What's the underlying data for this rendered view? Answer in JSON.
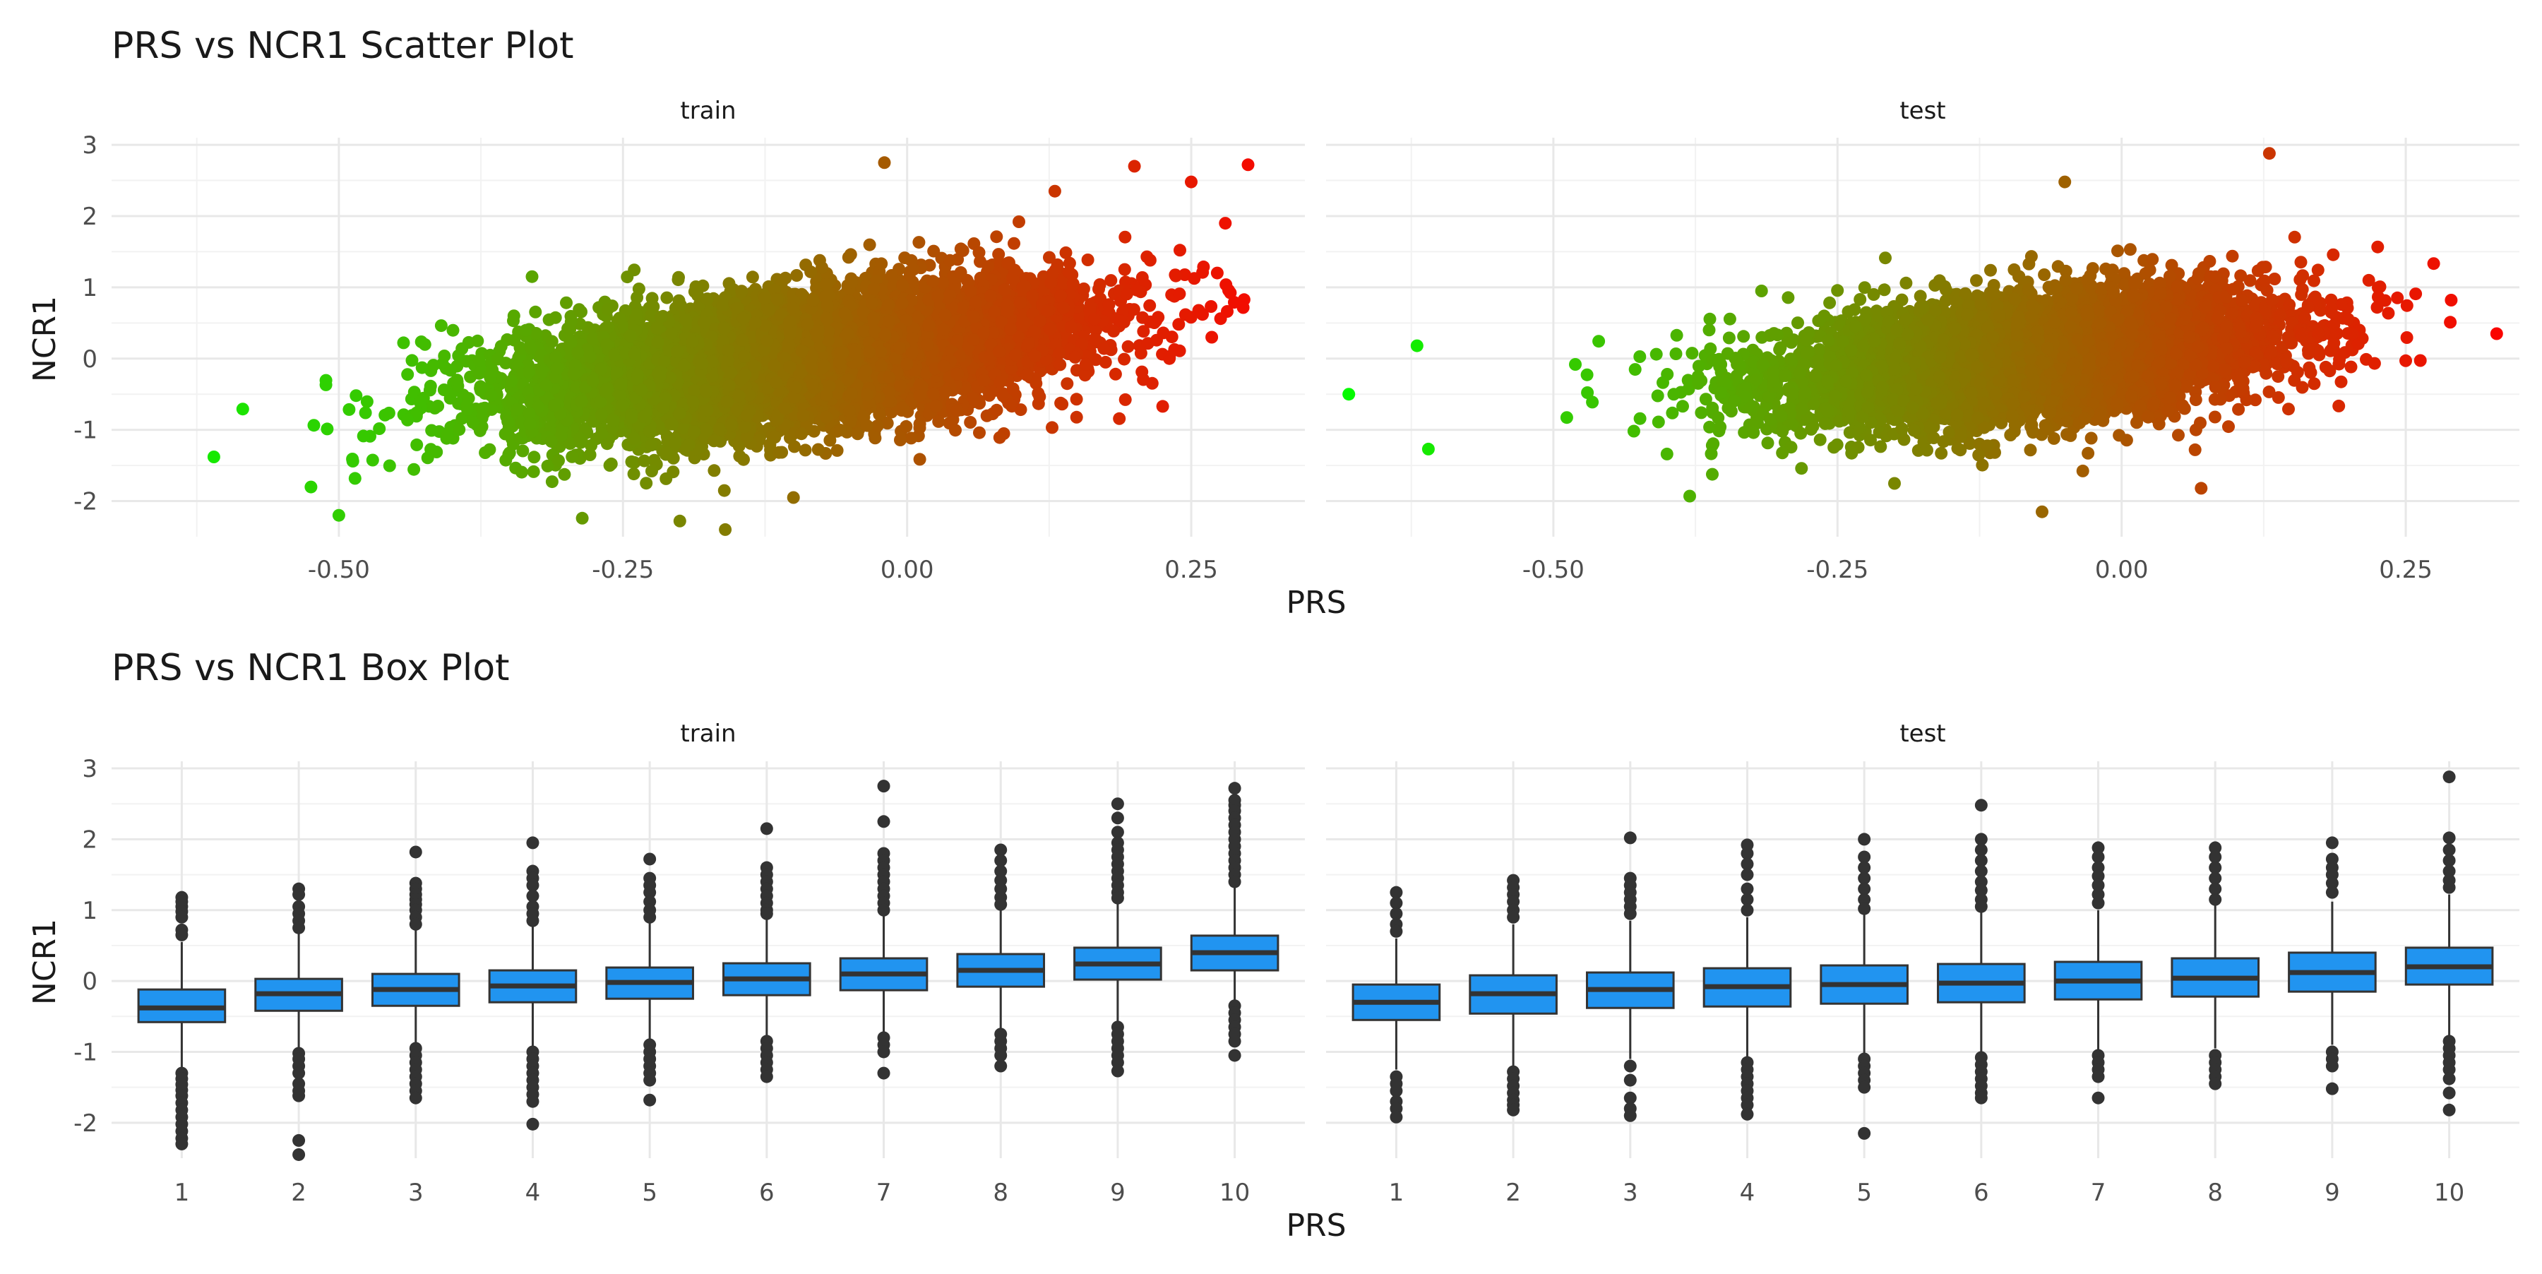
{
  "chart_data": [
    {
      "type": "scatter",
      "title": "PRS vs NCR1 Scatter Plot",
      "xlabel": "PRS",
      "ylabel": "NCR1",
      "facets": [
        "train",
        "test"
      ],
      "xlim": [
        -0.7,
        0.35
      ],
      "ylim": [
        -2.5,
        3.1
      ],
      "x_ticks": [
        -0.5,
        -0.25,
        0.0,
        0.25
      ],
      "x_tick_labels": [
        "-0.50",
        "-0.25",
        "0.00",
        "0.25"
      ],
      "y_ticks": [
        -2,
        -1,
        0,
        1,
        2,
        3
      ],
      "y_tick_labels": [
        "-2",
        "-1",
        "0",
        "1",
        "2",
        "3"
      ],
      "color_gradient": {
        "low": "#00ff00",
        "high": "#ff0000",
        "mapped_to": "PRS"
      },
      "grid": true,
      "legend": "none",
      "panels": [
        {
          "facet": "train",
          "n_points_approx": 8000,
          "prs_mean": -0.1,
          "prs_sd": 0.12,
          "slope": 1.9,
          "intercept": 0.19,
          "residual_sd": 0.45,
          "x_range": [
            -0.61,
            0.3
          ],
          "outliers": [
            {
              "x": 0.3,
              "y": 2.72
            },
            {
              "x": -0.61,
              "y": -1.38
            },
            {
              "x": -0.16,
              "y": -2.4
            },
            {
              "x": -0.02,
              "y": 2.75
            },
            {
              "x": 0.2,
              "y": 2.7
            },
            {
              "x": 0.25,
              "y": 2.48
            },
            {
              "x": -0.33,
              "y": 1.15
            },
            {
              "x": -0.5,
              "y": -2.2
            },
            {
              "x": -0.2,
              "y": -2.28
            },
            {
              "x": -0.1,
              "y": -1.95
            },
            {
              "x": 0.28,
              "y": 1.9
            },
            {
              "x": 0.13,
              "y": 2.35
            }
          ]
        },
        {
          "facet": "test",
          "n_points_approx": 6000,
          "prs_mean": -0.08,
          "prs_sd": 0.11,
          "slope": 1.7,
          "intercept": 0.15,
          "residual_sd": 0.42,
          "x_range": [
            -0.68,
            0.33
          ],
          "outliers": [
            {
              "x": -0.68,
              "y": -0.5
            },
            {
              "x": -0.61,
              "y": -1.27
            },
            {
              "x": 0.33,
              "y": 0.35
            },
            {
              "x": 0.13,
              "y": 2.88
            },
            {
              "x": 0.29,
              "y": 0.82
            },
            {
              "x": -0.05,
              "y": 2.48
            },
            {
              "x": -0.07,
              "y": -2.15
            },
            {
              "x": 0.07,
              "y": -1.82
            },
            {
              "x": -0.38,
              "y": -1.93
            },
            {
              "x": -0.62,
              "y": 0.18
            },
            {
              "x": 0.25,
              "y": -0.03
            }
          ]
        }
      ]
    },
    {
      "type": "box",
      "title": "PRS vs NCR1 Box Plot",
      "xlabel": "PRS",
      "ylabel": "NCR1",
      "facets": [
        "train",
        "test"
      ],
      "categories": [
        "1",
        "2",
        "3",
        "4",
        "5",
        "6",
        "7",
        "8",
        "9",
        "10"
      ],
      "ylim": [
        -2.5,
        3.1
      ],
      "y_ticks": [
        -2,
        -1,
        0,
        1,
        2,
        3
      ],
      "y_tick_labels": [
        "-2",
        "-1",
        "0",
        "1",
        "2",
        "3"
      ],
      "box_color": "#2194f0",
      "grid": true,
      "panels": [
        {
          "facet": "train",
          "boxes": [
            {
              "q1": -0.58,
              "median": -0.38,
              "q3": -0.12,
              "lower_whisker": -1.25,
              "upper_whisker": 0.55,
              "outliers": [
                1.18,
                1.12,
                1.05,
                0.98,
                0.9,
                0.72,
                0.65,
                -1.3,
                -1.38,
                -1.46,
                -1.54,
                -1.62,
                -1.72,
                -1.82,
                -1.92,
                -2.02,
                -2.12,
                -2.22,
                -2.3
              ]
            },
            {
              "q1": -0.42,
              "median": -0.18,
              "q3": 0.03,
              "lower_whisker": -0.97,
              "upper_whisker": 0.68,
              "outliers": [
                1.3,
                1.22,
                1.05,
                0.95,
                0.85,
                0.75,
                -1.02,
                -1.1,
                -1.2,
                -1.3,
                -1.45,
                -1.55,
                -1.62,
                -2.25,
                -2.45
              ]
            },
            {
              "q1": -0.35,
              "median": -0.12,
              "q3": 0.1,
              "lower_whisker": -0.98,
              "upper_whisker": 0.72,
              "outliers": [
                1.82,
                1.38,
                1.3,
                1.22,
                1.15,
                1.08,
                1.0,
                0.9,
                0.8,
                -0.95,
                -1.05,
                -1.15,
                -1.25,
                -1.35,
                -1.45,
                -1.55,
                -1.65
              ]
            },
            {
              "q1": -0.3,
              "median": -0.07,
              "q3": 0.15,
              "lower_whisker": -0.95,
              "upper_whisker": 0.77,
              "outliers": [
                1.95,
                1.55,
                1.45,
                1.35,
                1.2,
                1.05,
                0.95,
                0.85,
                -1.0,
                -1.1,
                -1.2,
                -1.3,
                -1.4,
                -1.5,
                -1.6,
                -1.7,
                -2.02
              ]
            },
            {
              "q1": -0.25,
              "median": -0.02,
              "q3": 0.19,
              "lower_whisker": -0.88,
              "upper_whisker": 0.82,
              "outliers": [
                1.72,
                1.45,
                1.35,
                1.25,
                1.12,
                1.0,
                0.9,
                -0.9,
                -1.0,
                -1.1,
                -1.2,
                -1.3,
                -1.4,
                -1.68
              ]
            },
            {
              "q1": -0.2,
              "median": 0.03,
              "q3": 0.25,
              "lower_whisker": -0.82,
              "upper_whisker": 0.88,
              "outliers": [
                2.15,
                1.6,
                1.5,
                1.4,
                1.3,
                1.2,
                1.1,
                1.0,
                0.95,
                -0.85,
                -0.95,
                -1.05,
                -1.15,
                -1.25,
                -1.35
              ]
            },
            {
              "q1": -0.13,
              "median": 0.1,
              "q3": 0.32,
              "lower_whisker": -0.75,
              "upper_whisker": 0.95,
              "outliers": [
                2.75,
                2.25,
                1.8,
                1.7,
                1.6,
                1.5,
                1.4,
                1.3,
                1.2,
                1.1,
                1.0,
                -0.8,
                -0.9,
                -1.0,
                -1.3
              ]
            },
            {
              "q1": -0.08,
              "median": 0.15,
              "q3": 0.38,
              "lower_whisker": -0.72,
              "upper_whisker": 1.02,
              "outliers": [
                1.85,
                1.7,
                1.55,
                1.42,
                1.3,
                1.18,
                1.08,
                -0.75,
                -0.85,
                -0.95,
                -1.05,
                -1.2
              ]
            },
            {
              "q1": 0.02,
              "median": 0.24,
              "q3": 0.47,
              "lower_whisker": -0.62,
              "upper_whisker": 1.12,
              "outliers": [
                2.5,
                2.3,
                2.1,
                1.95,
                1.85,
                1.75,
                1.65,
                1.55,
                1.45,
                1.35,
                1.25,
                1.17,
                -0.65,
                -0.75,
                -0.85,
                -0.95,
                -1.05,
                -1.15,
                -1.27
              ]
            },
            {
              "q1": 0.15,
              "median": 0.4,
              "q3": 0.64,
              "lower_whisker": -0.3,
              "upper_whisker": 1.35,
              "outliers": [
                2.72,
                2.55,
                2.48,
                2.4,
                2.3,
                2.2,
                2.1,
                2.0,
                1.9,
                1.8,
                1.7,
                1.6,
                1.5,
                1.4,
                -0.35,
                -0.45,
                -0.55,
                -0.65,
                -0.75,
                -0.85,
                -1.05
              ]
            }
          ]
        },
        {
          "facet": "test",
          "boxes": [
            {
              "q1": -0.55,
              "median": -0.3,
              "q3": -0.05,
              "lower_whisker": -1.25,
              "upper_whisker": 0.6,
              "outliers": [
                1.25,
                1.1,
                0.95,
                0.8,
                0.7,
                -1.35,
                -1.45,
                -1.55,
                -1.7,
                -1.8,
                -1.92
              ]
            },
            {
              "q1": -0.46,
              "median": -0.18,
              "q3": 0.08,
              "lower_whisker": -1.2,
              "upper_whisker": 0.8,
              "outliers": [
                1.42,
                1.32,
                1.22,
                1.12,
                1.0,
                0.9,
                -1.28,
                -1.38,
                -1.48,
                -1.58,
                -1.68,
                -1.75,
                -1.82
              ]
            },
            {
              "q1": -0.38,
              "median": -0.12,
              "q3": 0.12,
              "lower_whisker": -1.1,
              "upper_whisker": 0.85,
              "outliers": [
                2.02,
                1.45,
                1.35,
                1.25,
                1.15,
                1.05,
                0.95,
                -1.2,
                -1.4,
                -1.65,
                -1.8,
                -1.9
              ]
            },
            {
              "q1": -0.36,
              "median": -0.08,
              "q3": 0.18,
              "lower_whisker": -1.1,
              "upper_whisker": 0.9,
              "outliers": [
                1.92,
                1.8,
                1.65,
                1.5,
                1.3,
                1.15,
                1.0,
                -1.15,
                -1.25,
                -1.35,
                -1.45,
                -1.55,
                -1.65,
                -1.75,
                -1.88
              ]
            },
            {
              "q1": -0.32,
              "median": -0.05,
              "q3": 0.22,
              "lower_whisker": -1.05,
              "upper_whisker": 0.95,
              "outliers": [
                2.0,
                1.75,
                1.6,
                1.45,
                1.3,
                1.15,
                1.02,
                -1.1,
                -1.2,
                -1.3,
                -1.4,
                -1.5,
                -2.15
              ]
            },
            {
              "q1": -0.3,
              "median": -0.03,
              "q3": 0.24,
              "lower_whisker": -1.02,
              "upper_whisker": 0.97,
              "outliers": [
                2.48,
                2.0,
                1.85,
                1.7,
                1.55,
                1.4,
                1.28,
                1.15,
                1.05,
                -1.08,
                -1.18,
                -1.28,
                -1.38,
                -1.48,
                -1.58,
                -1.65
              ]
            },
            {
              "q1": -0.26,
              "median": 0.0,
              "q3": 0.27,
              "lower_whisker": -0.98,
              "upper_whisker": 1.0,
              "outliers": [
                1.88,
                1.75,
                1.6,
                1.48,
                1.35,
                1.22,
                1.1,
                -1.05,
                -1.15,
                -1.25,
                -1.35,
                -1.65
              ]
            },
            {
              "q1": -0.22,
              "median": 0.04,
              "q3": 0.32,
              "lower_whisker": -0.95,
              "upper_whisker": 1.07,
              "outliers": [
                1.88,
                1.75,
                1.6,
                1.45,
                1.3,
                1.15,
                -1.05,
                -1.15,
                -1.25,
                -1.35,
                -1.45
              ]
            },
            {
              "q1": -0.15,
              "median": 0.12,
              "q3": 0.4,
              "lower_whisker": -0.9,
              "upper_whisker": 1.12,
              "outliers": [
                1.95,
                1.72,
                1.6,
                1.5,
                1.38,
                1.25,
                -1.0,
                -1.1,
                -1.2,
                -1.52
              ]
            },
            {
              "q1": -0.05,
              "median": 0.2,
              "q3": 0.47,
              "lower_whisker": -0.8,
              "upper_whisker": 1.22,
              "outliers": [
                2.88,
                2.02,
                1.85,
                1.7,
                1.55,
                1.42,
                1.32,
                -0.85,
                -0.95,
                -1.05,
                -1.15,
                -1.25,
                -1.38,
                -1.58,
                -1.82
              ]
            }
          ]
        }
      ]
    }
  ]
}
